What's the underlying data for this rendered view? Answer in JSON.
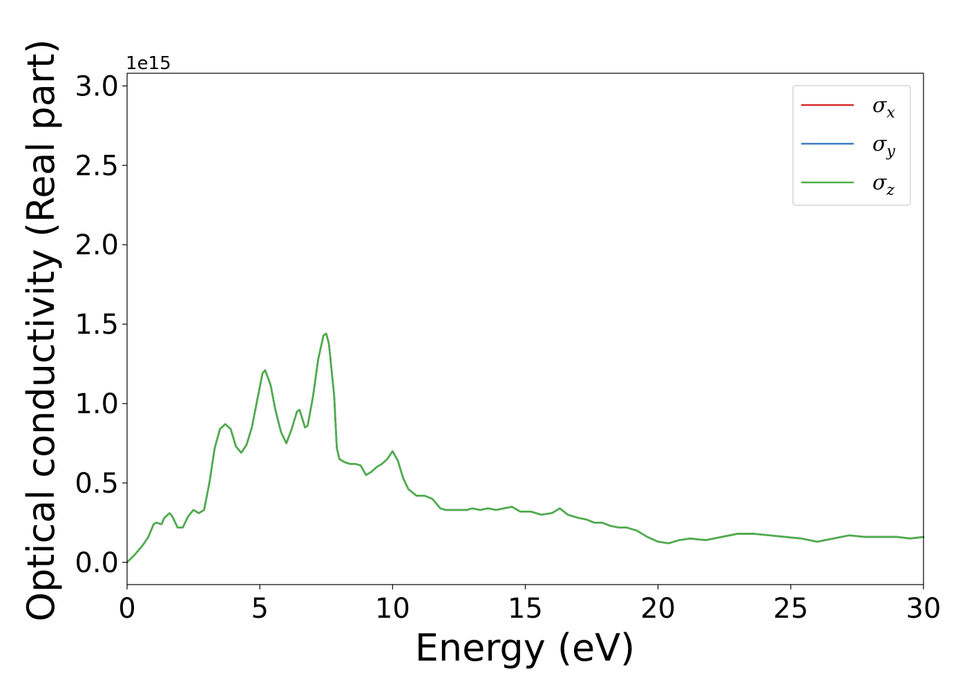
{
  "chart_data": {
    "type": "line",
    "xlabel": "Energy (eV)",
    "ylabel": "Optical conductivity (Real part)",
    "y_offset_label": "1e15",
    "xlim": [
      0,
      30
    ],
    "ylim": [
      -0.14,
      3.08
    ],
    "x_ticks": [
      0,
      5,
      10,
      15,
      20,
      25,
      30
    ],
    "x_tick_labels": [
      "0",
      "5",
      "10",
      "15",
      "20",
      "25",
      "30"
    ],
    "y_ticks": [
      0.0,
      0.5,
      1.0,
      1.5,
      2.0,
      2.5,
      3.0
    ],
    "y_tick_labels": [
      "0.0",
      "0.5",
      "1.0",
      "1.5",
      "2.0",
      "2.5",
      "3.0"
    ],
    "grid": false,
    "legend_position": "top-right",
    "x": [
      0.0,
      0.3,
      0.6,
      0.8,
      1.0,
      1.1,
      1.3,
      1.4,
      1.6,
      1.7,
      1.9,
      2.1,
      2.3,
      2.5,
      2.7,
      2.9,
      3.1,
      3.3,
      3.5,
      3.7,
      3.9,
      4.1,
      4.3,
      4.5,
      4.7,
      4.9,
      5.1,
      5.2,
      5.4,
      5.6,
      5.8,
      6.0,
      6.2,
      6.4,
      6.5,
      6.7,
      6.8,
      7.0,
      7.2,
      7.4,
      7.5,
      7.6,
      7.8,
      7.9,
      8.0,
      8.2,
      8.4,
      8.6,
      8.8,
      9.0,
      9.2,
      9.4,
      9.6,
      9.8,
      10.0,
      10.2,
      10.4,
      10.6,
      10.9,
      11.2,
      11.5,
      11.8,
      12.0,
      12.4,
      12.8,
      13.0,
      13.3,
      13.6,
      13.9,
      14.2,
      14.5,
      14.8,
      15.2,
      15.6,
      16.0,
      16.3,
      16.6,
      17.0,
      17.3,
      17.6,
      17.9,
      18.2,
      18.5,
      18.8,
      19.2,
      19.6,
      20.0,
      20.4,
      20.8,
      21.2,
      21.8,
      22.4,
      23.0,
      23.6,
      24.2,
      24.8,
      25.4,
      26.0,
      26.6,
      27.2,
      27.8,
      28.4,
      29.0,
      29.5,
      30.0
    ],
    "series": [
      {
        "name": "σx",
        "color": "#d62728",
        "values": [
          0.0,
          0.05,
          0.11,
          0.16,
          0.24,
          0.25,
          0.24,
          0.28,
          0.31,
          0.29,
          0.22,
          0.22,
          0.29,
          0.33,
          0.31,
          0.33,
          0.5,
          0.72,
          0.84,
          0.87,
          0.84,
          0.73,
          0.69,
          0.74,
          0.85,
          1.02,
          1.19,
          1.21,
          1.12,
          0.95,
          0.82,
          0.75,
          0.84,
          0.95,
          0.96,
          0.85,
          0.86,
          1.04,
          1.28,
          1.43,
          1.44,
          1.38,
          1.05,
          0.72,
          0.65,
          0.63,
          0.62,
          0.62,
          0.61,
          0.55,
          0.57,
          0.6,
          0.62,
          0.65,
          0.7,
          0.64,
          0.53,
          0.46,
          0.42,
          0.42,
          0.4,
          0.34,
          0.33,
          0.33,
          0.33,
          0.34,
          0.33,
          0.34,
          0.33,
          0.34,
          0.35,
          0.32,
          0.32,
          0.3,
          0.31,
          0.34,
          0.3,
          0.28,
          0.27,
          0.25,
          0.25,
          0.23,
          0.22,
          0.22,
          0.2,
          0.16,
          0.13,
          0.12,
          0.14,
          0.15,
          0.14,
          0.16,
          0.18,
          0.18,
          0.17,
          0.16,
          0.15,
          0.13,
          0.15,
          0.17,
          0.16,
          0.16,
          0.16,
          0.15,
          0.16
        ]
      },
      {
        "name": "σy",
        "color": "#3a7abf",
        "values": [
          0.0,
          0.05,
          0.11,
          0.16,
          0.24,
          0.25,
          0.24,
          0.28,
          0.31,
          0.29,
          0.22,
          0.22,
          0.29,
          0.33,
          0.31,
          0.33,
          0.5,
          0.72,
          0.84,
          0.87,
          0.84,
          0.73,
          0.69,
          0.74,
          0.85,
          1.02,
          1.19,
          1.21,
          1.12,
          0.95,
          0.82,
          0.75,
          0.84,
          0.95,
          0.96,
          0.85,
          0.86,
          1.04,
          1.28,
          1.43,
          1.44,
          1.38,
          1.05,
          0.72,
          0.65,
          0.63,
          0.62,
          0.62,
          0.61,
          0.55,
          0.57,
          0.6,
          0.62,
          0.65,
          0.7,
          0.64,
          0.53,
          0.46,
          0.42,
          0.42,
          0.4,
          0.34,
          0.33,
          0.33,
          0.33,
          0.34,
          0.33,
          0.34,
          0.33,
          0.34,
          0.35,
          0.32,
          0.32,
          0.3,
          0.31,
          0.34,
          0.3,
          0.28,
          0.27,
          0.25,
          0.25,
          0.23,
          0.22,
          0.22,
          0.2,
          0.16,
          0.13,
          0.12,
          0.14,
          0.15,
          0.14,
          0.16,
          0.18,
          0.18,
          0.17,
          0.16,
          0.15,
          0.13,
          0.15,
          0.17,
          0.16,
          0.16,
          0.16,
          0.15,
          0.16
        ]
      },
      {
        "name": "σz",
        "color": "#4daf4a",
        "values": [
          0.0,
          0.05,
          0.11,
          0.16,
          0.24,
          0.25,
          0.24,
          0.28,
          0.31,
          0.29,
          0.22,
          0.22,
          0.29,
          0.33,
          0.31,
          0.33,
          0.5,
          0.72,
          0.84,
          0.87,
          0.84,
          0.73,
          0.69,
          0.74,
          0.85,
          1.02,
          1.19,
          1.21,
          1.12,
          0.95,
          0.82,
          0.75,
          0.84,
          0.95,
          0.96,
          0.85,
          0.86,
          1.04,
          1.28,
          1.43,
          1.44,
          1.38,
          1.05,
          0.72,
          0.65,
          0.63,
          0.62,
          0.62,
          0.61,
          0.55,
          0.57,
          0.6,
          0.62,
          0.65,
          0.7,
          0.64,
          0.53,
          0.46,
          0.42,
          0.42,
          0.4,
          0.34,
          0.33,
          0.33,
          0.33,
          0.34,
          0.33,
          0.34,
          0.33,
          0.34,
          0.35,
          0.32,
          0.32,
          0.3,
          0.31,
          0.34,
          0.3,
          0.28,
          0.27,
          0.25,
          0.25,
          0.23,
          0.22,
          0.22,
          0.2,
          0.16,
          0.13,
          0.12,
          0.14,
          0.15,
          0.14,
          0.16,
          0.18,
          0.18,
          0.17,
          0.16,
          0.15,
          0.13,
          0.15,
          0.17,
          0.16,
          0.16,
          0.16,
          0.15,
          0.16
        ]
      }
    ],
    "legend": [
      {
        "symbol": "σ",
        "sub": "x",
        "color": "#d62728"
      },
      {
        "symbol": "σ",
        "sub": "y",
        "color": "#3a7abf"
      },
      {
        "symbol": "σ",
        "sub": "z",
        "color": "#4daf4a"
      }
    ]
  }
}
